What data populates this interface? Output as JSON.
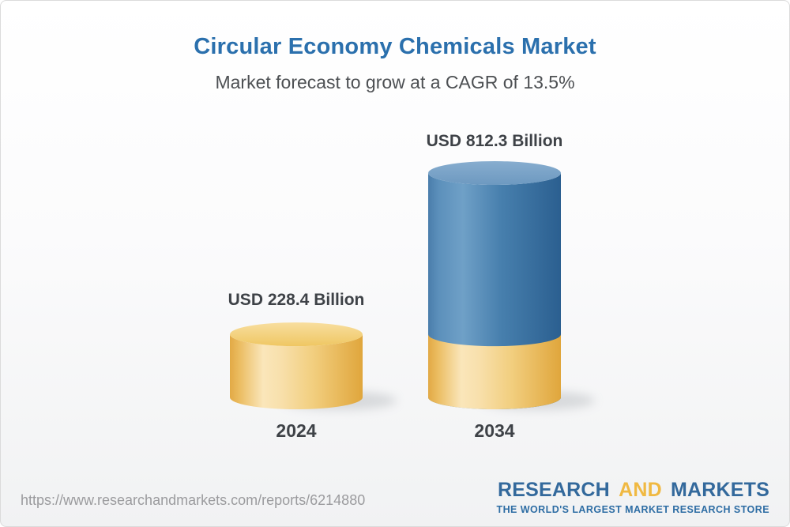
{
  "chart_data": {
    "type": "bar",
    "style": "3d-cylinder",
    "title": "Circular Economy Chemicals Market",
    "subtitle": "Market forecast to grow at a CAGR of 13.5%",
    "cagr_percent": 13.5,
    "unit": "USD Billion",
    "categories": [
      "2024",
      "2034"
    ],
    "values": [
      228.4,
      812.3
    ],
    "value_labels": [
      "USD 228.4 Billion",
      "USD 812.3 Billion"
    ],
    "bar_colors": [
      "#f0c25f",
      "#3e74a4"
    ],
    "forecast_bar_shows_base_segment": true,
    "axes": "none",
    "grid": false,
    "legend": false,
    "ylim": [
      0,
      812.3
    ]
  },
  "colors": {
    "title_blue": "#2b70ad",
    "label_dark": "#3e4247",
    "logo_blue": "#33699c",
    "logo_yellow": "#f0b942",
    "url_gray": "#9b9b9e"
  },
  "footer": {
    "url": "https://www.researchandmarkets.com/reports/6214880",
    "logo": {
      "research": "RESEARCH",
      "and": "AND",
      "markets": "MARKETS",
      "tagline": "THE WORLD'S LARGEST MARKET RESEARCH STORE"
    }
  }
}
